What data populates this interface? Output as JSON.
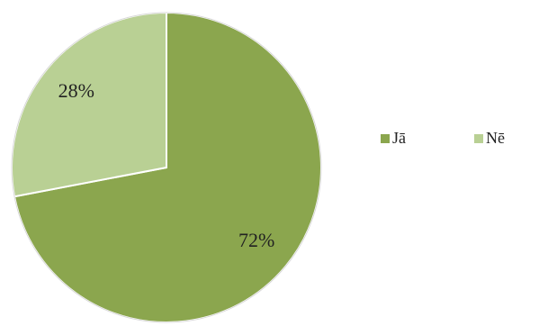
{
  "chart_data": {
    "type": "pie",
    "categories": [
      "Jā",
      "Nē"
    ],
    "values": [
      72,
      28
    ],
    "value_labels": [
      "72%",
      "28%"
    ],
    "colors": [
      "#8ba64e",
      "#b9d094"
    ],
    "legend": "right"
  }
}
